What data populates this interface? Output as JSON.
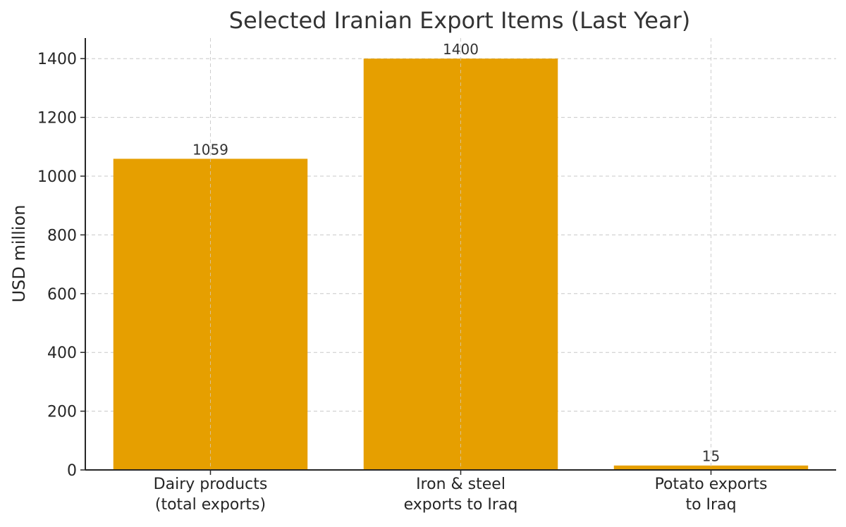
{
  "chart_data": {
    "type": "bar",
    "title": "Selected Iranian Export Items (Last Year)",
    "xlabel": "",
    "ylabel": "USD million",
    "categories": [
      [
        "Dairy products",
        "(total exports)"
      ],
      [
        "Iron & steel",
        "exports to Iraq"
      ],
      [
        "Potato exports",
        "to Iraq"
      ]
    ],
    "values": [
      1059,
      1400,
      15
    ],
    "value_labels": [
      "1059",
      "1400",
      "15"
    ],
    "ylim": [
      0,
      1470
    ],
    "yticks": [
      0,
      200,
      400,
      600,
      800,
      1000,
      1200,
      1400
    ],
    "grid": true,
    "legend": "none",
    "bar_color": "#E69F00"
  }
}
